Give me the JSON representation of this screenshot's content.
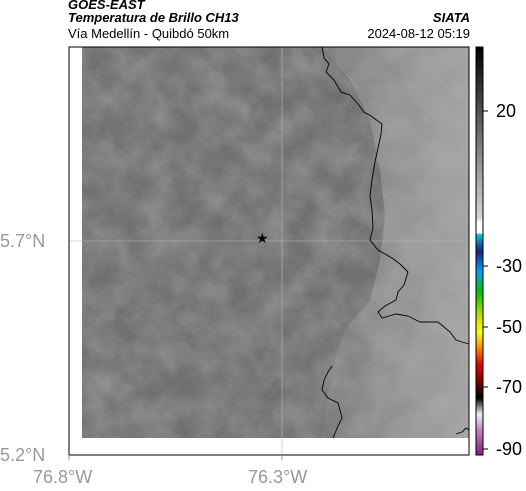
{
  "header": {
    "satellite": "GOES-EAST",
    "product": "Temperatura de Brillo CH13",
    "region": "Vía Medellín - Quibdó 50km",
    "agency": "SIATA",
    "datetime": "2024-08-12 05:19"
  },
  "axes": {
    "x_ticks": [
      "76.8°W",
      "76.3°W"
    ],
    "y_ticks": [
      "5.7°N",
      "5.2°N"
    ]
  },
  "colorbar": {
    "labels": [
      "20",
      "-30",
      "-50",
      "-70",
      "-90"
    ]
  },
  "marker": {
    "symbol": "★"
  },
  "colors": {
    "background_field": "#717171",
    "border_line": "#000000",
    "grid": "#b0b0b0"
  }
}
